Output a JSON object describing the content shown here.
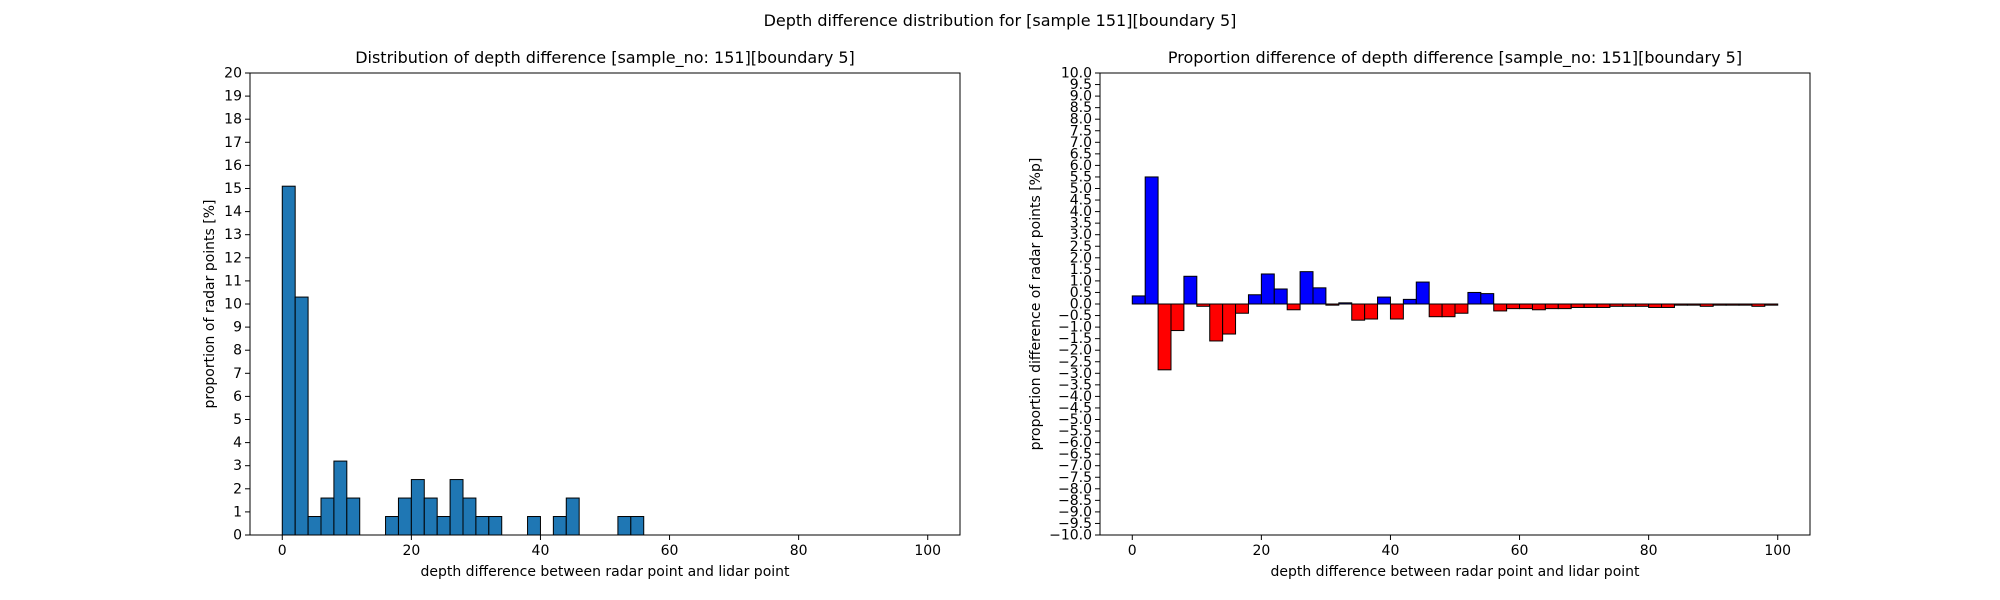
{
  "suptitle": "Depth difference distribution for [sample 151][boundary 5]",
  "chart_data": [
    {
      "type": "bar",
      "title": "Distribution of depth difference [sample_no: 151][boundary 5]",
      "xlabel": "depth difference between radar point and lidar point",
      "ylabel": "proportion of radar points [%]",
      "xlim": [
        -5,
        105
      ],
      "ylim": [
        0,
        20
      ],
      "xticks": [
        0,
        20,
        40,
        60,
        80,
        100
      ],
      "yticks": [
        0,
        1,
        2,
        3,
        4,
        5,
        6,
        7,
        8,
        9,
        10,
        11,
        12,
        13,
        14,
        15,
        16,
        17,
        18,
        19,
        20
      ],
      "grid": false,
      "bin_width": 2,
      "color": "#1f77b4",
      "edge_color": "#000000",
      "x": [
        0,
        2,
        4,
        6,
        8,
        10,
        12,
        14,
        16,
        18,
        20,
        22,
        24,
        26,
        28,
        30,
        32,
        34,
        36,
        38,
        40,
        42,
        44,
        46,
        48,
        50,
        52,
        54,
        56,
        58,
        60,
        62,
        64,
        66,
        68,
        70,
        72,
        74,
        76,
        78,
        80,
        82,
        84,
        86,
        88,
        90,
        92,
        94,
        96,
        98
      ],
      "values": [
        15.1,
        10.3,
        0.8,
        1.6,
        3.2,
        1.6,
        0,
        0,
        0.8,
        1.6,
        2.4,
        1.6,
        0.8,
        2.4,
        1.6,
        0.8,
        0.8,
        0,
        0,
        0.8,
        0,
        0.8,
        1.6,
        0,
        0,
        0,
        0.8,
        0.8,
        0,
        0,
        0,
        0,
        0,
        0,
        0,
        0,
        0,
        0,
        0,
        0,
        0,
        0,
        0,
        0,
        0,
        0,
        0,
        0,
        0,
        0
      ]
    },
    {
      "type": "bar",
      "title": "Proportion difference of depth difference [sample_no: 151][boundary 5]",
      "xlabel": "depth difference between radar point and lidar point",
      "ylabel": "proportion difference of radar points [%p]",
      "xlim": [
        -5,
        105
      ],
      "ylim": [
        -10,
        10
      ],
      "xticks": [
        0,
        20,
        40,
        60,
        80,
        100
      ],
      "yticks": [
        -10,
        -9.5,
        -9,
        -8.5,
        -8,
        -7.5,
        -7,
        -6.5,
        -6,
        -5.5,
        -5,
        -4.5,
        -4,
        -3.5,
        -3,
        -2.5,
        -2,
        -1.5,
        -1,
        -0.5,
        0,
        0.5,
        1,
        1.5,
        2,
        2.5,
        3,
        3.5,
        4,
        4.5,
        5,
        5.5,
        6,
        6.5,
        7,
        7.5,
        8,
        8.5,
        9,
        9.5,
        10
      ],
      "ytick_labels": [
        "−10.0",
        "−9.5",
        "−9.0",
        "−8.5",
        "−8.0",
        "−7.5",
        "−7.0",
        "−6.5",
        "−6.0",
        "−5.5",
        "−5.0",
        "−4.5",
        "−4.0",
        "−3.5",
        "−3.0",
        "−2.5",
        "−2.0",
        "−1.5",
        "−1.0",
        "−0.5",
        "0.0",
        "0.5",
        "1.0",
        "1.5",
        "2.0",
        "2.5",
        "3.0",
        "3.5",
        "4.0",
        "4.5",
        "5.0",
        "5.5",
        "6.0",
        "6.5",
        "7.0",
        "7.5",
        "8.0",
        "8.5",
        "9.0",
        "9.5",
        "10.0"
      ],
      "grid": false,
      "bin_width": 2,
      "positive_color": "#0000ff",
      "negative_color": "#ff0000",
      "edge_color": "#000000",
      "x": [
        0,
        2,
        4,
        6,
        8,
        10,
        12,
        14,
        16,
        18,
        20,
        22,
        24,
        26,
        28,
        30,
        32,
        34,
        36,
        38,
        40,
        42,
        44,
        46,
        48,
        50,
        52,
        54,
        56,
        58,
        60,
        62,
        64,
        66,
        68,
        70,
        72,
        74,
        76,
        78,
        80,
        82,
        84,
        86,
        88,
        90,
        92,
        94,
        96,
        98
      ],
      "values": [
        0.35,
        5.5,
        -2.85,
        -1.15,
        1.2,
        -0.1,
        -1.6,
        -1.3,
        -0.4,
        0.4,
        1.3,
        0.65,
        -0.25,
        1.4,
        0.7,
        -0.05,
        0.05,
        -0.7,
        -0.65,
        0.3,
        -0.65,
        0.2,
        0.95,
        -0.55,
        -0.55,
        -0.4,
        0.5,
        0.45,
        -0.3,
        -0.2,
        -0.2,
        -0.25,
        -0.2,
        -0.2,
        -0.15,
        -0.15,
        -0.15,
        -0.1,
        -0.1,
        -0.1,
        -0.15,
        -0.15,
        -0.05,
        -0.05,
        -0.1,
        -0.05,
        -0.05,
        -0.05,
        -0.1,
        -0.05
      ]
    }
  ]
}
